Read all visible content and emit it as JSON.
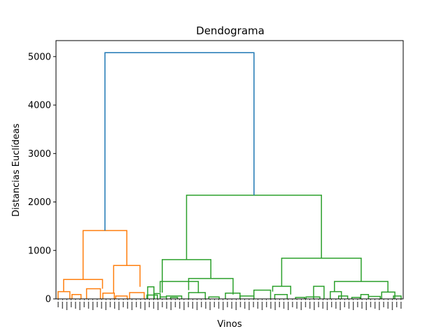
{
  "chart_data": {
    "type": "dendrogram",
    "title": "Dendograma",
    "xlabel": "Vinos",
    "ylabel": "Distancias Euclídeas",
    "ylim": [
      0,
      5330
    ],
    "yticks": [
      0,
      1000,
      2000,
      3000,
      4000,
      5000
    ],
    "grid": false,
    "leaf_count": 80,
    "leaf_labels_readable": false,
    "colors": {
      "root": "#1f77b4",
      "cluster_1": "#ff7f0e",
      "cluster_2": "#2ca02c"
    },
    "top_merges": [
      {
        "name": "root",
        "height": 5080,
        "color": "#1f77b4"
      },
      {
        "name": "cluster_1",
        "height": 1410,
        "color": "#ff7f0e"
      },
      {
        "name": "cluster_2",
        "height": 2140,
        "color": "#2ca02c"
      },
      {
        "name": "cluster_1a",
        "height": 400,
        "color": "#ff7f0e"
      },
      {
        "name": "cluster_1b",
        "height": 690,
        "color": "#ff7f0e"
      },
      {
        "name": "cluster_2a",
        "height": 810,
        "color": "#2ca02c"
      },
      {
        "name": "cluster_2b",
        "height": 840,
        "color": "#2ca02c"
      },
      {
        "name": "cluster_2a_right",
        "height": 420,
        "color": "#2ca02c"
      },
      {
        "name": "cluster_2b_right",
        "height": 360,
        "color": "#2ca02c"
      },
      {
        "name": "cluster_2b_left",
        "height": 260,
        "color": "#2ca02c"
      }
    ]
  }
}
